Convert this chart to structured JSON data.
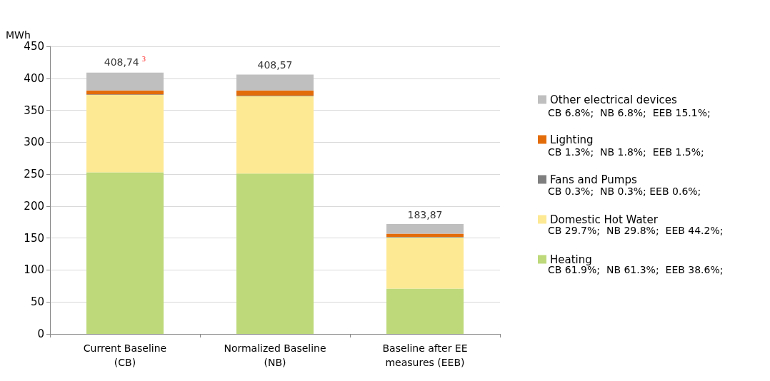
{
  "chart_data": {
    "type": "bar",
    "stacked": true,
    "ylabel": "MWh",
    "categories": [
      "Current Baseline\n(CB)",
      "Normalized Baseline\n(NB)",
      "Baseline after EE\nmeasures (EEB)"
    ],
    "series": [
      {
        "name": "Heating",
        "color": "#bdd97a",
        "values": [
          253,
          251,
          71
        ]
      },
      {
        "name": "Domestic Hot Water",
        "color": "#fde994",
        "values": [
          121,
          121,
          80
        ]
      },
      {
        "name": "Fans and Pumps",
        "color": "#7f7f7f",
        "values": [
          1,
          1,
          1
        ]
      },
      {
        "name": "Lighting",
        "color": "#e36c0a",
        "values": [
          6,
          8,
          5
        ]
      },
      {
        "name": "Other electrical devices",
        "color": "#bfbfbf",
        "values": [
          28,
          25,
          15
        ]
      }
    ],
    "annotations": [
      {
        "text": "408,74$^{3}$",
        "x": "Current Baseline\n(CB)",
        "y": 409
      },
      {
        "text": "408,57",
        "x": "Normalized Baseline\n(NB)",
        "y": 406
      },
      {
        "text": "183,87",
        "x": "Baseline after EE\nmeasures (EEB)",
        "y": 172
      },
      "CB 6.8%;  NB 6.8%;  EEB 15.1%;",
      "CB 1.3%;  NB 1.8%;  EEB 1.5%;",
      "CB 0.3%;  NB 0.3%; EEB 0.6%;",
      "CB 29.7%;  NB 29.8%;  EEB 44.2%;",
      "CB 61.9%;  NB 61.3%;  EEB 38.6%;"
    ],
    "ylim": [
      0,
      450
    ],
    "yticks": [
      0,
      50,
      100,
      150,
      200,
      250,
      300,
      350,
      400,
      450
    ],
    "grid": "y",
    "legend": "right"
  }
}
